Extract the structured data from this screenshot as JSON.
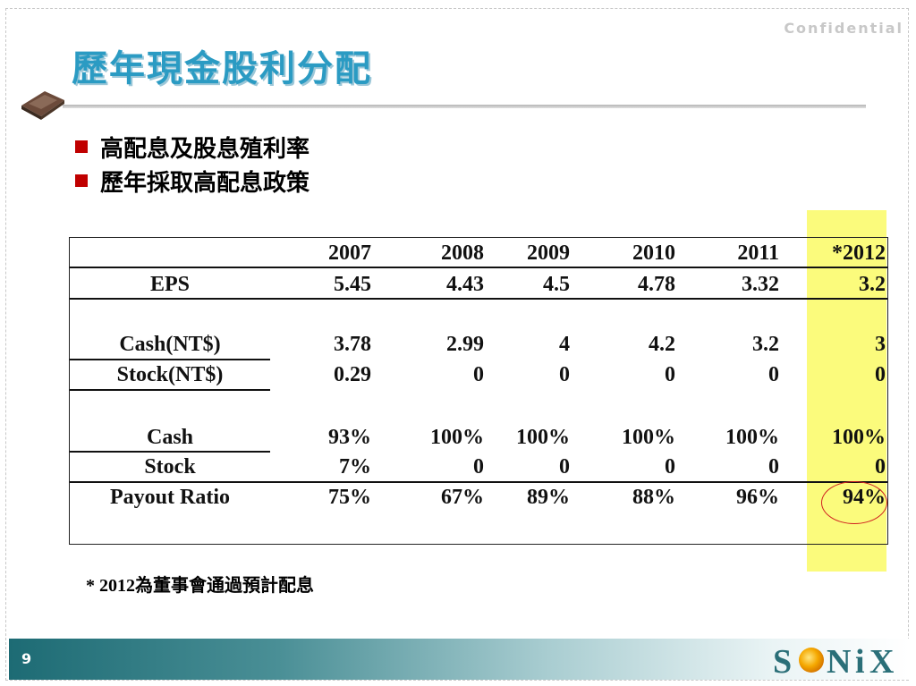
{
  "confidential": "Confidential",
  "title": "歷年現金股利分配",
  "logo_label": "SONIX",
  "bullets": [
    "高配息及股息殖利率",
    "歷年採取高配息政策"
  ],
  "table": {
    "years": [
      "2007",
      "2008",
      "2009",
      "2010",
      "2011",
      "*2012"
    ],
    "rows": [
      {
        "label": "EPS",
        "values": [
          "5.45",
          "4.43",
          "4.5",
          "4.78",
          "3.32",
          "3.2"
        ]
      },
      {
        "label": "Cash(NT$)",
        "values": [
          "3.78",
          "2.99",
          "4",
          "4.2",
          "3.2",
          "3"
        ]
      },
      {
        "label": "Stock(NT$)",
        "values": [
          "0.29",
          "0",
          "0",
          "0",
          "0",
          "0"
        ]
      },
      {
        "label": "Cash",
        "values": [
          "93%",
          "100%",
          "100%",
          "100%",
          "100%",
          "100%"
        ]
      },
      {
        "label": "Stock",
        "values": [
          "7%",
          "0",
          "0",
          "0",
          "0",
          "0"
        ]
      },
      {
        "label": "Payout Ratio",
        "values": [
          "75%",
          "67%",
          "89%",
          "88%",
          "96%",
          "94%"
        ]
      }
    ]
  },
  "footnote": "* 2012為董事會通過預計配息",
  "page_number": "9",
  "colors": {
    "title": "#2b9bc3",
    "bullet": "#c00000",
    "highlight": "#fbfb7c",
    "circle": "#d02020"
  }
}
